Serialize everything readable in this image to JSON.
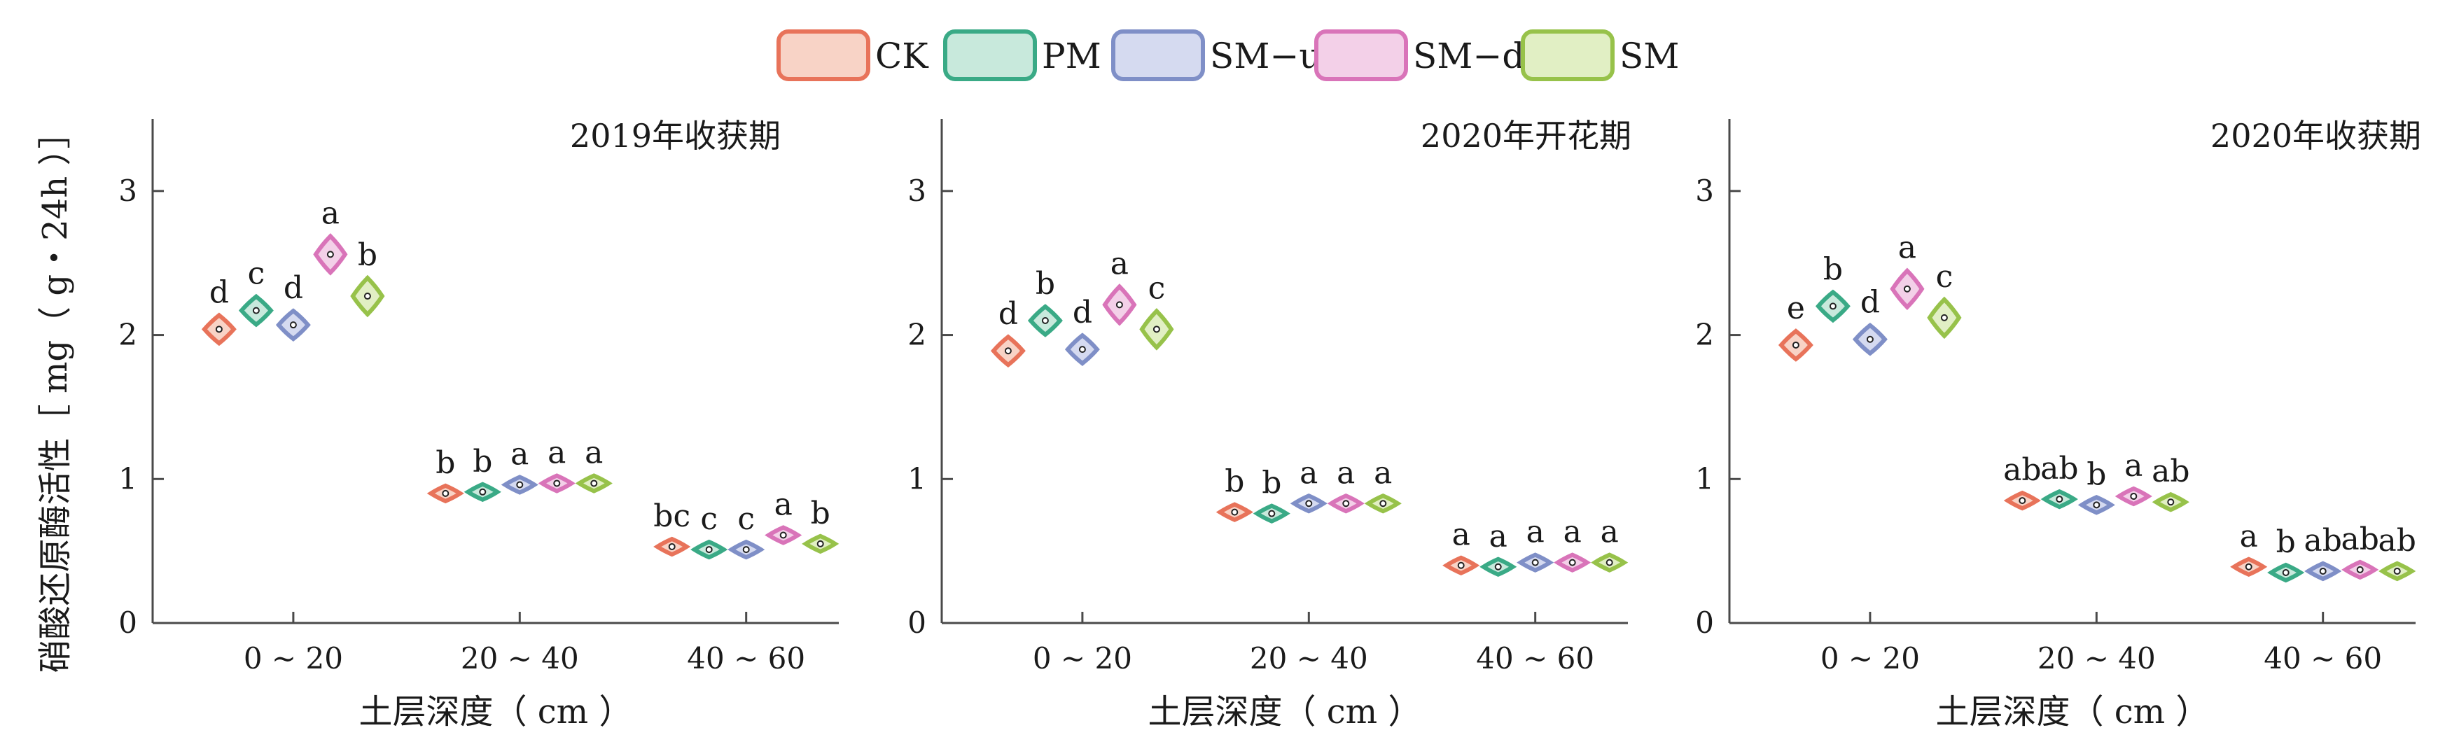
{
  "chart_data": {
    "type": "violin",
    "ylabel": "硝酸还原酶活性［ mg（ g・24h ）］",
    "xlabel": "土层深度（ cm ）",
    "categories": [
      "0 ~ 20",
      "20 ~ 40",
      "40 ~ 60"
    ],
    "ylim": [
      0,
      3.5
    ],
    "yticks": [
      0,
      1,
      2,
      3
    ],
    "legend": {
      "position": "top-center",
      "entries": [
        {
          "name": "CK",
          "color": "#e8735a",
          "fill": "#f8d3c6"
        },
        {
          "name": "PM",
          "color": "#3aaa86",
          "fill": "#c8e9dc"
        },
        {
          "name": "SM−u",
          "color": "#7f8fc7",
          "fill": "#d5daf0"
        },
        {
          "name": "SM−d",
          "color": "#d974b9",
          "fill": "#f3d0e8"
        },
        {
          "name": "SM",
          "color": "#97c24a",
          "fill": "#e1efc4"
        }
      ]
    },
    "panels": [
      {
        "title": "2019年收获期",
        "groups": [
          {
            "category": "0 ~ 20",
            "values": [
              2.04,
              2.17,
              2.07,
              2.56,
              2.27
            ],
            "labels": [
              "d",
              "c",
              "d",
              "a",
              "b"
            ]
          },
          {
            "category": "20 ~ 40",
            "values": [
              0.9,
              0.91,
              0.96,
              0.97,
              0.97
            ],
            "labels": [
              "b",
              "b",
              "a",
              "a",
              "a"
            ]
          },
          {
            "category": "40 ~ 60",
            "values": [
              0.53,
              0.51,
              0.51,
              0.61,
              0.55
            ],
            "labels": [
              "bc",
              "c",
              "c",
              "a",
              "b"
            ]
          }
        ]
      },
      {
        "title": "2020年开花期",
        "groups": [
          {
            "category": "0 ~ 20",
            "values": [
              1.89,
              2.1,
              1.9,
              2.21,
              2.04
            ],
            "labels": [
              "d",
              "b",
              "d",
              "a",
              "c"
            ]
          },
          {
            "category": "20 ~ 40",
            "values": [
              0.77,
              0.76,
              0.83,
              0.83,
              0.83
            ],
            "labels": [
              "b",
              "b",
              "a",
              "a",
              "a"
            ]
          },
          {
            "category": "40 ~ 60",
            "values": [
              0.4,
              0.39,
              0.42,
              0.42,
              0.42
            ],
            "labels": [
              "a",
              "a",
              "a",
              "a",
              "a"
            ]
          }
        ]
      },
      {
        "title": "2020年收获期",
        "groups": [
          {
            "category": "0 ~ 20",
            "values": [
              1.93,
              2.2,
              1.97,
              2.32,
              2.12
            ],
            "labels": [
              "e",
              "b",
              "d",
              "a",
              "c"
            ]
          },
          {
            "category": "20 ~ 40",
            "values": [
              0.85,
              0.86,
              0.82,
              0.88,
              0.84
            ],
            "labels": [
              "ab",
              "ab",
              "b",
              "a",
              "ab"
            ]
          },
          {
            "category": "40 ~ 60",
            "values": [
              0.39,
              0.35,
              0.36,
              0.37,
              0.36
            ],
            "labels": [
              "a",
              "b",
              "ab",
              "ab",
              "ab"
            ]
          }
        ]
      }
    ]
  }
}
